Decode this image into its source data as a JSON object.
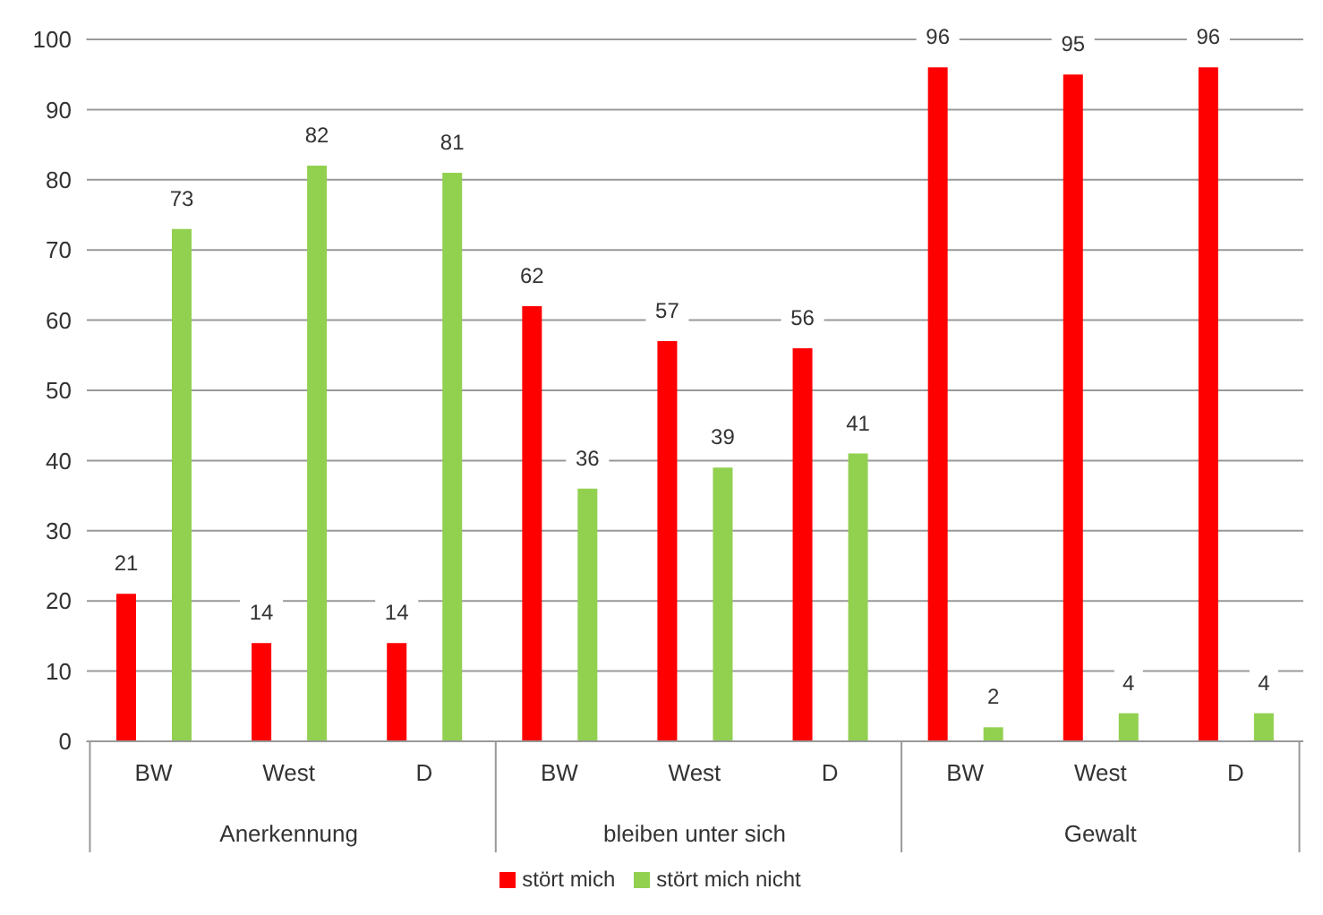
{
  "chart_data": {
    "type": "bar",
    "categories": [
      "BW",
      "West",
      "D",
      "BW",
      "West",
      "D",
      "BW",
      "West",
      "D"
    ],
    "series": [
      {
        "name": "stört mich",
        "color": "#ff0000",
        "values": [
          21,
          14,
          14,
          62,
          57,
          56,
          96,
          95,
          96
        ]
      },
      {
        "name": "stört mich nicht",
        "color": "#92d050",
        "values": [
          73,
          82,
          81,
          36,
          39,
          41,
          2,
          4,
          4
        ]
      }
    ],
    "annotations": [
      "Anerkennung",
      "bleiben unter sich",
      "Gewalt"
    ],
    "ylim": [
      0,
      100
    ],
    "yticks": [
      0,
      10,
      20,
      30,
      40,
      50,
      60,
      70,
      80,
      90,
      100
    ],
    "grid": "y",
    "legend": "bottom",
    "data_labels": true
  }
}
